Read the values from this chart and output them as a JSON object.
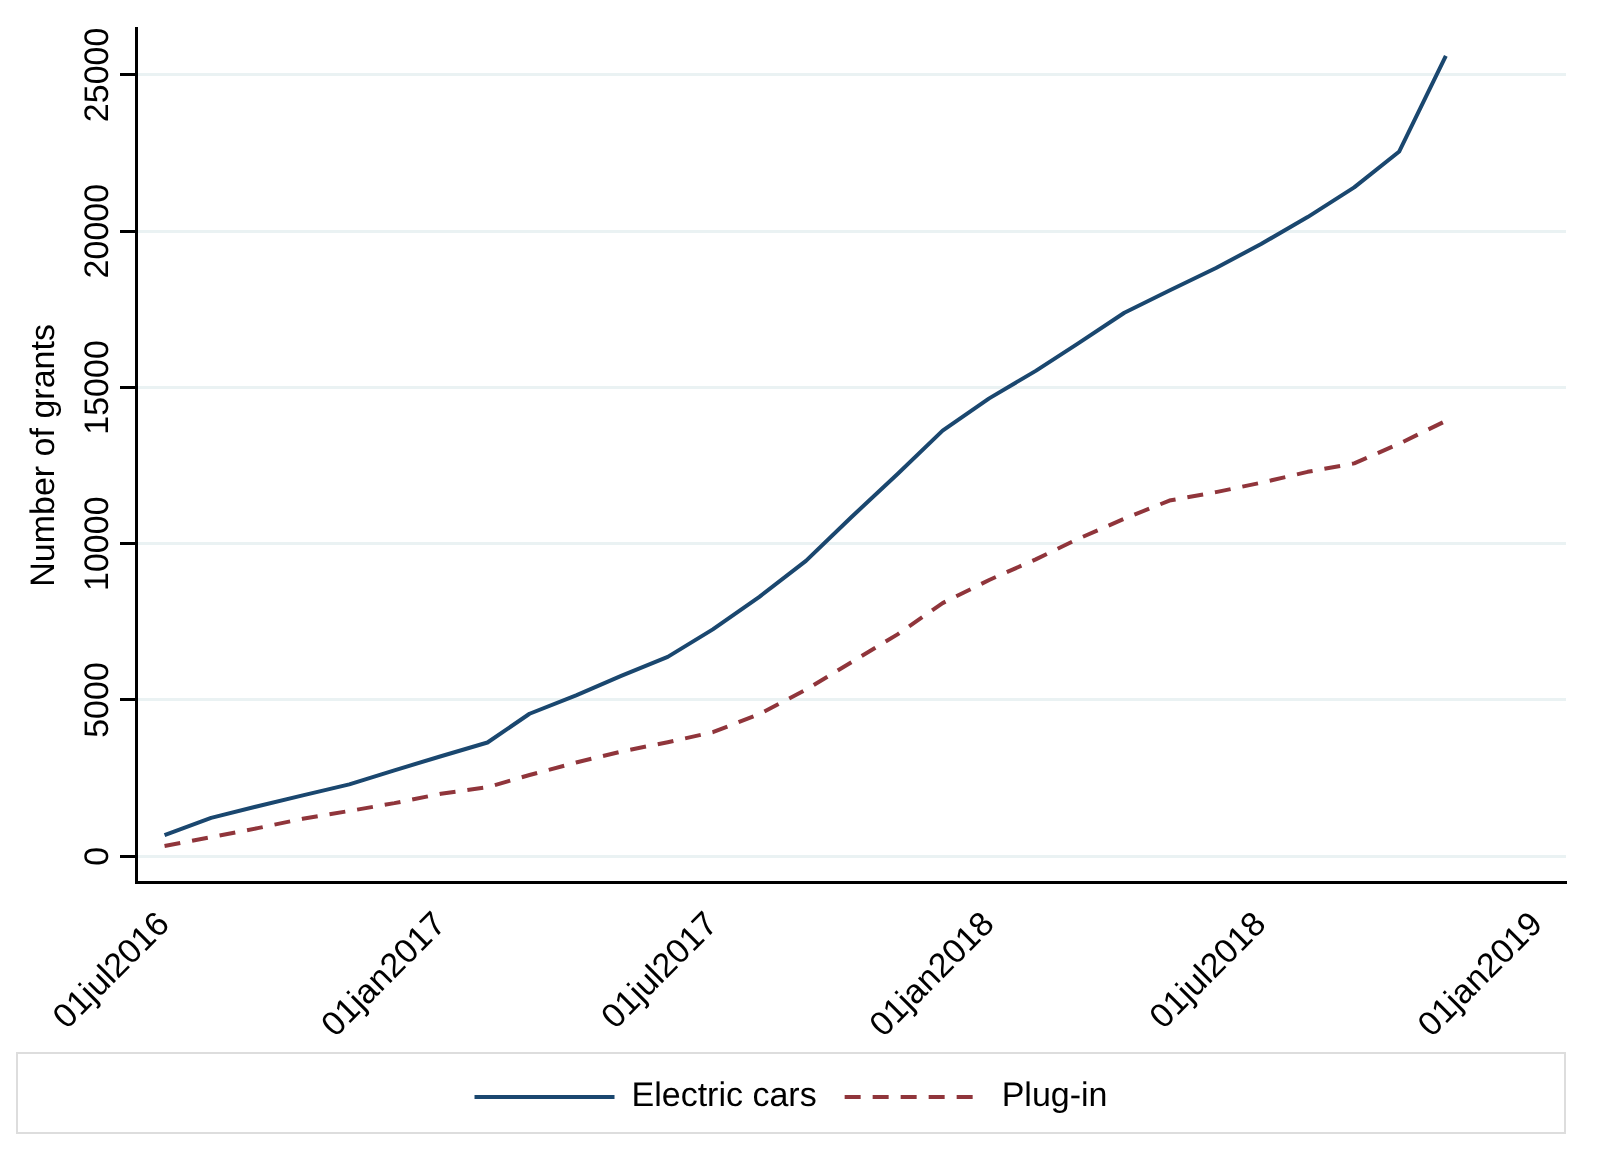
{
  "chart_data": {
    "type": "line",
    "ylabel": "Number of grants",
    "x": [
      "2016-07",
      "2016-08",
      "2016-09",
      "2016-10",
      "2016-11",
      "2016-12",
      "2017-01",
      "2017-02",
      "2017-03",
      "2017-04",
      "2017-05",
      "2017-06",
      "2017-07",
      "2017-08",
      "2017-09",
      "2017-10",
      "2017-11",
      "2017-12",
      "2018-01",
      "2018-02",
      "2018-03",
      "2018-04",
      "2018-05",
      "2018-06",
      "2018-07",
      "2018-08",
      "2018-09",
      "2018-10",
      "2018-11"
    ],
    "series": [
      {
        "name": "Electric cars",
        "color": "#1a476f",
        "line_style": "solid",
        "values": [
          680,
          1230,
          1600,
          1950,
          2300,
          2750,
          3200,
          3640,
          4560,
          5150,
          5770,
          6380,
          7260,
          8300,
          9450,
          10840,
          12230,
          13620,
          14650,
          15530,
          16400,
          17390,
          18100,
          18820,
          19590,
          20450,
          21400,
          22550,
          25610
        ]
      },
      {
        "name": "Plug-in",
        "color": "#90353b",
        "line_style": "dashed",
        "values": [
          330,
          610,
          900,
          1200,
          1450,
          1700,
          2000,
          2210,
          2600,
          3000,
          3350,
          3650,
          3970,
          4550,
          5330,
          6200,
          7100,
          8100,
          8840,
          9500,
          10150,
          10800,
          11380,
          11650,
          11950,
          12300,
          12570,
          13200,
          13930
        ]
      }
    ],
    "xlim": [
      "2016-06-12",
      "2019-01-20"
    ],
    "xticks": [
      {
        "value": "2016-07-01",
        "label": "01jul2016"
      },
      {
        "value": "2017-01-01",
        "label": "01jan2017"
      },
      {
        "value": "2017-07-01",
        "label": "01jul2017"
      },
      {
        "value": "2018-01-01",
        "label": "01jan2018"
      },
      {
        "value": "2018-07-01",
        "label": "01jul2018"
      },
      {
        "value": "2019-01-01",
        "label": "01jan2019"
      }
    ],
    "ylim": [
      -850,
      26500
    ],
    "yticks": [
      0,
      5000,
      10000,
      15000,
      20000,
      25000
    ],
    "grid": "y",
    "legend": "bottom",
    "marker": "none"
  }
}
